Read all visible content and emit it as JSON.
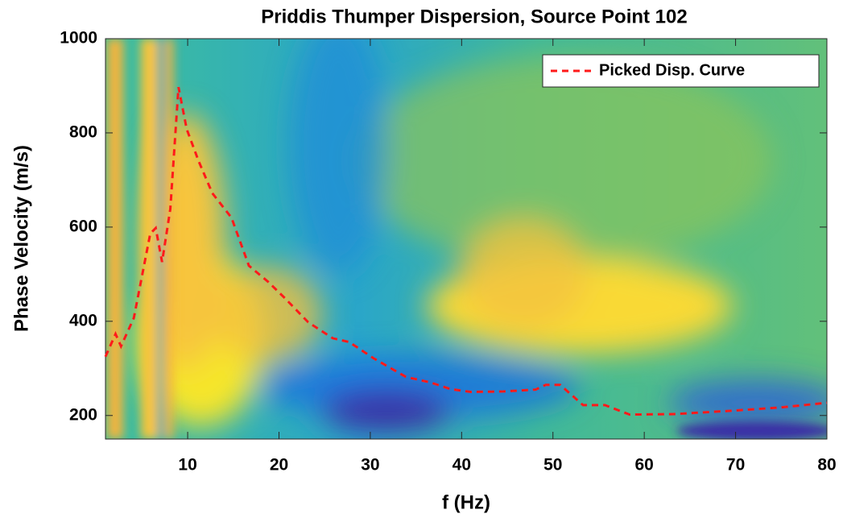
{
  "chart_data": {
    "type": "line",
    "title": "Priddis Thumper Dispersion, Source Point 102",
    "x_label": "f (Hz)",
    "y_label": "Phase Velocity (m/s)",
    "xlim": [
      1,
      80
    ],
    "ylim": [
      150,
      1000
    ],
    "xticks": [
      10,
      20,
      30,
      40,
      50,
      60,
      70,
      80
    ],
    "yticks": [
      200,
      400,
      600,
      800,
      1000
    ],
    "legend": "upper right",
    "series": [
      {
        "name": "Picked Disp. Curve",
        "color": "#ff1a1a",
        "line_style": "dashed",
        "x": [
          1,
          2.1,
          2.7,
          4.1,
          5.9,
          6.5,
          7.2,
          8.1,
          9,
          9.9,
          11.2,
          12.7,
          14.8,
          16.7,
          18.8,
          20.6,
          23.2,
          25.9,
          27.7,
          30.4,
          33.9,
          36.6,
          38.8,
          41,
          44.6,
          48.1,
          49.2,
          50.8,
          53.3,
          55.7,
          58.4,
          63.3,
          69.5,
          74.9,
          80
        ],
        "values": [
          325,
          373,
          347,
          407,
          586,
          598,
          526,
          638,
          897,
          808,
          740,
          672,
          620,
          518,
          484,
          450,
          398,
          364,
          356,
          321,
          282,
          270,
          256,
          250,
          251,
          255,
          265,
          265,
          222,
          222,
          202,
          203,
          210,
          217,
          227
        ]
      }
    ]
  }
}
